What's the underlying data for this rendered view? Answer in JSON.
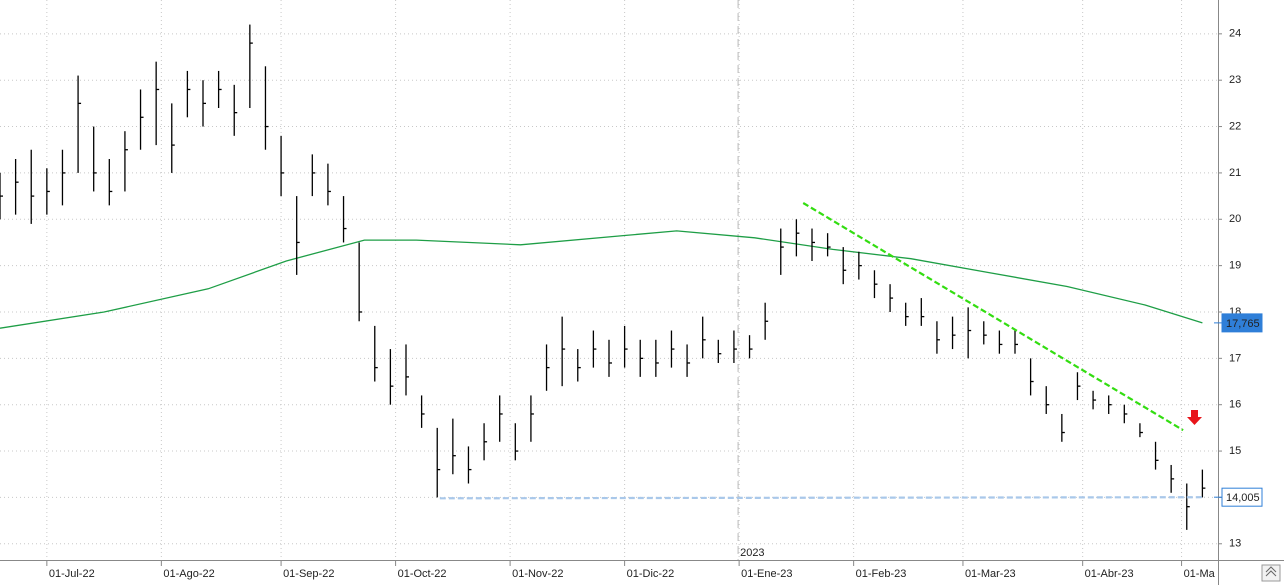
{
  "chart_data": {
    "type": "ohlc",
    "xlim": [
      0,
      234
    ],
    "ylim": [
      12.65,
      24.73
    ],
    "yticks": [
      13,
      14,
      15,
      16,
      17,
      18,
      19,
      20,
      21,
      22,
      23,
      24
    ],
    "xticks": [
      {
        "value": 9,
        "label": "01-Jul-22"
      },
      {
        "value": 31,
        "label": "01-Ago-22"
      },
      {
        "value": 54,
        "label": "01-Sep-22"
      },
      {
        "value": 76,
        "label": "01-Oct-22"
      },
      {
        "value": 98,
        "label": "01-Nov-22"
      },
      {
        "value": 120,
        "label": "01-Dic-22"
      },
      {
        "value": 142,
        "label": "01-Ene-23"
      },
      {
        "value": 164,
        "label": "01-Feb-23"
      },
      {
        "value": 185,
        "label": "01-Mar-23"
      },
      {
        "value": 208,
        "label": "01-Abr-23"
      },
      {
        "value": 227,
        "label": "01-Ma"
      }
    ],
    "year_marker": {
      "value": 141.8,
      "label": "2023"
    },
    "grid": true,
    "bars": {
      "color": "#000000",
      "x": [
        0,
        3,
        6,
        9,
        12,
        15,
        18,
        21,
        24,
        27,
        30,
        33,
        36,
        39,
        42,
        45,
        48,
        51,
        54,
        57,
        60,
        63,
        66,
        69,
        72,
        75,
        78,
        81,
        84,
        87,
        90,
        93,
        96,
        99,
        102,
        105,
        108,
        111,
        114,
        117,
        120,
        123,
        126,
        129,
        132,
        135,
        138,
        141,
        144,
        147,
        150,
        153,
        156,
        159,
        162,
        165,
        168,
        171,
        174,
        177,
        180,
        183,
        186,
        189,
        192,
        195,
        198,
        201,
        204,
        207,
        210,
        213,
        216,
        219,
        222,
        225,
        228,
        231
      ],
      "high": [
        21.0,
        21.3,
        21.5,
        21.1,
        21.5,
        23.1,
        22.0,
        21.3,
        21.9,
        22.8,
        23.4,
        22.5,
        23.2,
        23.0,
        23.2,
        22.9,
        24.2,
        23.3,
        21.8,
        20.5,
        21.4,
        21.2,
        20.5,
        19.5,
        17.7,
        17.2,
        17.3,
        16.2,
        15.5,
        15.7,
        15.1,
        15.6,
        16.2,
        15.6,
        16.2,
        17.3,
        17.9,
        17.2,
        17.6,
        17.4,
        17.7,
        17.4,
        17.4,
        17.6,
        17.3,
        17.9,
        17.4,
        17.6,
        17.5,
        18.2,
        19.8,
        20.0,
        19.8,
        19.7,
        19.4,
        19.3,
        18.9,
        18.6,
        18.2,
        18.3,
        17.8,
        17.9,
        18.1,
        17.8,
        17.6,
        17.6,
        17.0,
        16.4,
        15.8,
        16.7,
        16.3,
        16.2,
        16.0,
        15.6,
        15.2,
        14.7,
        14.3,
        14.6
      ],
      "low": [
        20.0,
        20.1,
        19.9,
        20.1,
        20.3,
        21.0,
        20.6,
        20.3,
        20.6,
        21.5,
        21.6,
        21.0,
        22.2,
        22.0,
        22.4,
        21.8,
        22.4,
        21.5,
        20.5,
        18.8,
        20.5,
        20.3,
        19.5,
        17.8,
        16.5,
        16.0,
        16.2,
        15.5,
        14.0,
        14.5,
        14.3,
        14.8,
        15.2,
        14.8,
        15.2,
        16.3,
        16.4,
        16.5,
        16.8,
        16.6,
        16.8,
        16.6,
        16.6,
        16.8,
        16.6,
        17.0,
        16.9,
        16.9,
        17.0,
        17.4,
        18.8,
        19.2,
        19.1,
        19.2,
        18.6,
        18.7,
        18.3,
        18.0,
        17.7,
        17.7,
        17.1,
        17.2,
        17.0,
        17.3,
        17.1,
        17.1,
        16.2,
        15.8,
        15.2,
        16.1,
        15.9,
        15.8,
        15.6,
        15.3,
        14.6,
        14.1,
        13.3,
        14.0
      ],
      "close": [
        20.5,
        20.8,
        20.5,
        20.6,
        21.0,
        22.5,
        21.0,
        20.6,
        21.5,
        22.2,
        22.8,
        21.6,
        22.8,
        22.5,
        22.8,
        22.3,
        23.8,
        22.0,
        21.0,
        19.5,
        21.0,
        20.6,
        19.8,
        18.0,
        16.8,
        16.4,
        16.6,
        15.8,
        14.6,
        14.9,
        14.6,
        15.2,
        15.8,
        15.0,
        15.8,
        16.8,
        17.2,
        16.8,
        17.2,
        16.9,
        17.2,
        17.0,
        16.9,
        17.2,
        16.9,
        17.4,
        17.1,
        17.2,
        17.2,
        17.8,
        19.4,
        19.7,
        19.5,
        19.4,
        18.9,
        19.0,
        18.6,
        18.3,
        17.9,
        17.9,
        17.4,
        17.5,
        17.6,
        17.5,
        17.3,
        17.3,
        16.5,
        16.0,
        15.4,
        16.4,
        16.1,
        16.0,
        15.8,
        15.4,
        14.8,
        14.4,
        13.8,
        14.2
      ]
    },
    "moving_average": {
      "color": "#1e9e46",
      "x": [
        0,
        20,
        40,
        55,
        70,
        80,
        100,
        120,
        130,
        145,
        160,
        175,
        190,
        205,
        220,
        231
      ],
      "values": [
        17.65,
        18.0,
        18.5,
        19.1,
        19.55,
        19.55,
        19.45,
        19.65,
        19.75,
        19.6,
        19.35,
        19.15,
        18.85,
        18.55,
        18.15,
        17.765
      ]
    },
    "trendlines": [
      {
        "color": "#33dd11",
        "x": [
          154.3,
          227.3
        ],
        "values": [
          20.35,
          15.45
        ]
      },
      {
        "color": "#a9c8ea",
        "x": [
          84.5,
          231.5
        ],
        "values": [
          13.98,
          14.005
        ]
      }
    ],
    "price_labels": [
      {
        "value": 17.765,
        "label": "17,765",
        "color": "#2f7fd8",
        "text_color": "#ffffff"
      },
      {
        "value": 14.005,
        "label": "14,005",
        "color": "#ffffff",
        "text_color": "#222222"
      }
    ]
  }
}
